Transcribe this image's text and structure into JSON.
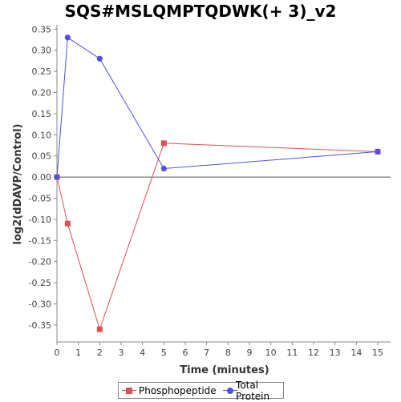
{
  "chart_data": {
    "type": "line",
    "title": "SQS#MSLQMPTQDWK(+ 3)_v2",
    "xlabel": "Time (minutes)",
    "ylabel": "log2(dDAVP/Control)",
    "xlim": [
      0,
      15.6
    ],
    "ylim": [
      -0.39,
      0.36
    ],
    "x_ticks": [
      0,
      1,
      2,
      3,
      4,
      5,
      6,
      7,
      8,
      9,
      10,
      11,
      12,
      13,
      14,
      15
    ],
    "y_ticks": [
      0.35,
      0.3,
      0.25,
      0.2,
      0.15,
      0.1,
      0.05,
      0.0,
      -0.05,
      -0.1,
      -0.15,
      -0.2,
      -0.25,
      -0.3,
      -0.35
    ],
    "y_tick_labels": [
      "0.35",
      "0.30",
      "0.25",
      "0.20",
      "0.15",
      "0.10",
      "0.05",
      "0.00",
      "-0.05",
      "-0.10",
      "-0.15",
      "-0.20",
      "-0.25",
      "-0.30",
      "-0.35"
    ],
    "grid": false,
    "zero_line": true,
    "legend_position": "bottom",
    "series": [
      {
        "name": "Phosphopeptide",
        "color": "#e05050",
        "marker": "square",
        "x": [
          0,
          0.5,
          2,
          5,
          15
        ],
        "y": [
          0.0,
          -0.11,
          -0.36,
          0.08,
          0.06
        ]
      },
      {
        "name": "Total Protein",
        "color": "#5050e0",
        "marker": "circle",
        "x": [
          0,
          0.5,
          2,
          5,
          15
        ],
        "y": [
          0.0,
          0.33,
          0.28,
          0.02,
          0.06
        ]
      }
    ]
  }
}
